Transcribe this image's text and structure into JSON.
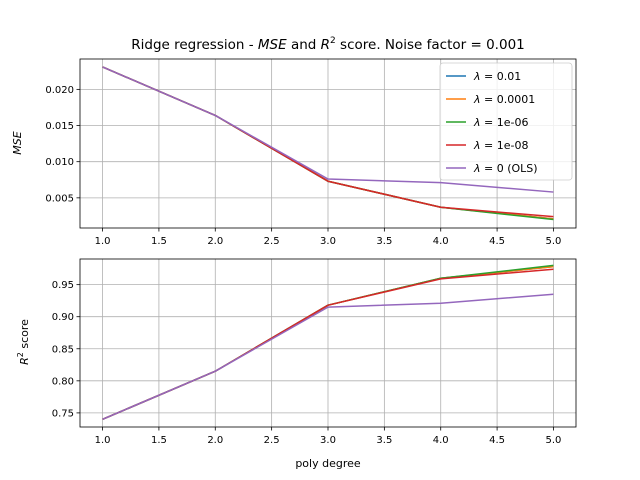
{
  "chart_data": {
    "type": "line",
    "title_prefix": "Ridge regression - ",
    "title_mse": "MSE",
    "title_and": " and ",
    "title_r": "R",
    "title_sup": "2",
    "title_suffix": " score. Noise factor = 0.001",
    "xlabel": "poly degree",
    "x": [
      1,
      2,
      3,
      4,
      5
    ],
    "xticks": [
      "1.0",
      "1.5",
      "2.0",
      "2.5",
      "3.0",
      "3.5",
      "4.0",
      "4.5",
      "5.0"
    ],
    "xlim": [
      0.8,
      5.2
    ],
    "grid": true,
    "legend_placement": "upper right (top panel)",
    "series": [
      {
        "lam": "0.01",
        "suffix": "",
        "color": "#1f77b4"
      },
      {
        "lam": "0.0001",
        "suffix": "",
        "color": "#ff7f0e"
      },
      {
        "lam": "1e-06",
        "suffix": "",
        "color": "#2ca02c"
      },
      {
        "lam": "1e-08",
        "suffix": "",
        "color": "#d62728"
      },
      {
        "lam": "0",
        "suffix": " (OLS)",
        "color": "#9467bd"
      }
    ],
    "panels": [
      {
        "id": "mse",
        "ylabel": "MSE",
        "ylim": [
          0.00083,
          0.0242
        ],
        "yticks": [
          0.005,
          0.01,
          0.015,
          0.02
        ],
        "ytick_labels": [
          "0.005",
          "0.010",
          "0.015",
          "0.020"
        ],
        "values": [
          [
            0.0231,
            0.0164,
            0.0073,
            0.0037,
            0.0021
          ],
          [
            0.0231,
            0.0164,
            0.0073,
            0.0037,
            0.0021
          ],
          [
            0.0231,
            0.0164,
            0.0073,
            0.0037,
            0.002
          ],
          [
            0.0231,
            0.0164,
            0.0073,
            0.0037,
            0.0024
          ],
          [
            0.0231,
            0.0164,
            0.0076,
            0.0071,
            0.0058
          ]
        ]
      },
      {
        "id": "r2",
        "ylabel_base": "R",
        "ylabel_sup": "2",
        "ylabel_suffix": " score",
        "ylim": [
          0.728,
          0.99
        ],
        "yticks": [
          0.75,
          0.8,
          0.85,
          0.9,
          0.95
        ],
        "ytick_labels": [
          "0.75",
          "0.80",
          "0.85",
          "0.90",
          "0.95"
        ],
        "values": [
          [
            0.74,
            0.815,
            0.918,
            0.96,
            0.978
          ],
          [
            0.74,
            0.815,
            0.918,
            0.96,
            0.978
          ],
          [
            0.74,
            0.815,
            0.918,
            0.96,
            0.98
          ],
          [
            0.74,
            0.815,
            0.918,
            0.959,
            0.974
          ],
          [
            0.74,
            0.815,
            0.915,
            0.921,
            0.935
          ]
        ]
      }
    ]
  }
}
